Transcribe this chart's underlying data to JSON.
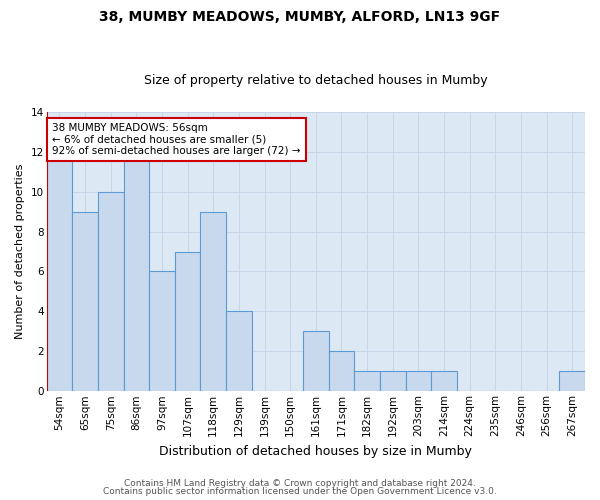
{
  "title": "38, MUMBY MEADOWS, MUMBY, ALFORD, LN13 9GF",
  "subtitle": "Size of property relative to detached houses in Mumby",
  "xlabel": "Distribution of detached houses by size in Mumby",
  "ylabel": "Number of detached properties",
  "categories": [
    "54sqm",
    "65sqm",
    "75sqm",
    "86sqm",
    "97sqm",
    "107sqm",
    "118sqm",
    "129sqm",
    "139sqm",
    "150sqm",
    "161sqm",
    "171sqm",
    "182sqm",
    "192sqm",
    "203sqm",
    "214sqm",
    "224sqm",
    "235sqm",
    "246sqm",
    "256sqm",
    "267sqm"
  ],
  "values": [
    12,
    9,
    10,
    12,
    6,
    7,
    9,
    4,
    0,
    0,
    3,
    2,
    1,
    1,
    1,
    1,
    0,
    0,
    0,
    0,
    1
  ],
  "bar_color": "#c9d9ed",
  "bar_edge_color": "#5b9bd5",
  "annotation_text": "38 MUMBY MEADOWS: 56sqm\n← 6% of detached houses are smaller (5)\n92% of semi-detached houses are larger (72) →",
  "annotation_box_color": "white",
  "annotation_box_edge_color": "#cc0000",
  "vline_color": "#cc0000",
  "ylim": [
    0,
    14
  ],
  "yticks": [
    0,
    2,
    4,
    6,
    8,
    10,
    12,
    14
  ],
  "grid_color": "#c8d4e8",
  "background_color": "#dde8f5",
  "plot_bg_color": "#dde8f5",
  "footer_line1": "Contains HM Land Registry data © Crown copyright and database right 2024.",
  "footer_line2": "Contains public sector information licensed under the Open Government Licence v3.0.",
  "title_fontsize": 10,
  "subtitle_fontsize": 9,
  "xlabel_fontsize": 9,
  "ylabel_fontsize": 8,
  "tick_fontsize": 7.5,
  "footer_fontsize": 6.5
}
